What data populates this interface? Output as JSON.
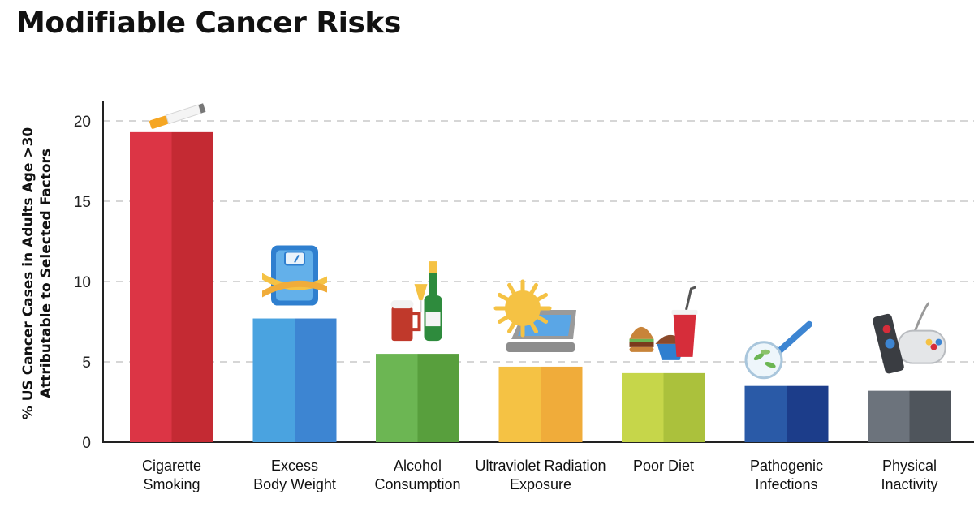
{
  "chart_data": {
    "type": "bar",
    "title": "Modifiable Cancer Risks",
    "ylabel": [
      "% US Cancer Cases in Adults Age >30",
      "Attributable to Selected Factors"
    ],
    "xlabel": "",
    "ylim": [
      0,
      20
    ],
    "yticks": [
      0,
      5,
      10,
      15,
      20
    ],
    "grid": "horizontal-dashed",
    "categories": [
      [
        "Cigarette",
        "Smoking"
      ],
      [
        "Excess",
        "Body Weight"
      ],
      [
        "Alcohol",
        "Consumption"
      ],
      [
        "Ultraviolet Radiation",
        "Exposure"
      ],
      [
        "Poor Diet"
      ],
      [
        "Pathogenic",
        "Infections"
      ],
      [
        "Physical",
        "Inactivity"
      ]
    ],
    "values": [
      19.3,
      7.7,
      5.5,
      4.7,
      4.3,
      3.5,
      3.2
    ],
    "colors": [
      [
        "#dc3545",
        "#c42a33"
      ],
      [
        "#4aa3e0",
        "#3d85d2"
      ],
      [
        "#6cb653",
        "#589f3d"
      ],
      [
        "#f5c244",
        "#f0ac3a"
      ],
      [
        "#c6d64a",
        "#abc13c"
      ],
      [
        "#2a5aa7",
        "#1c3d8a"
      ],
      [
        "#6c737c",
        "#4f555c"
      ]
    ],
    "icons": [
      "cigarette-icon",
      "scale-icon",
      "drinks-icon",
      "tanning-bed-icon",
      "fast-food-icon",
      "petri-dish-icon",
      "remote-gamepad-icon"
    ]
  }
}
